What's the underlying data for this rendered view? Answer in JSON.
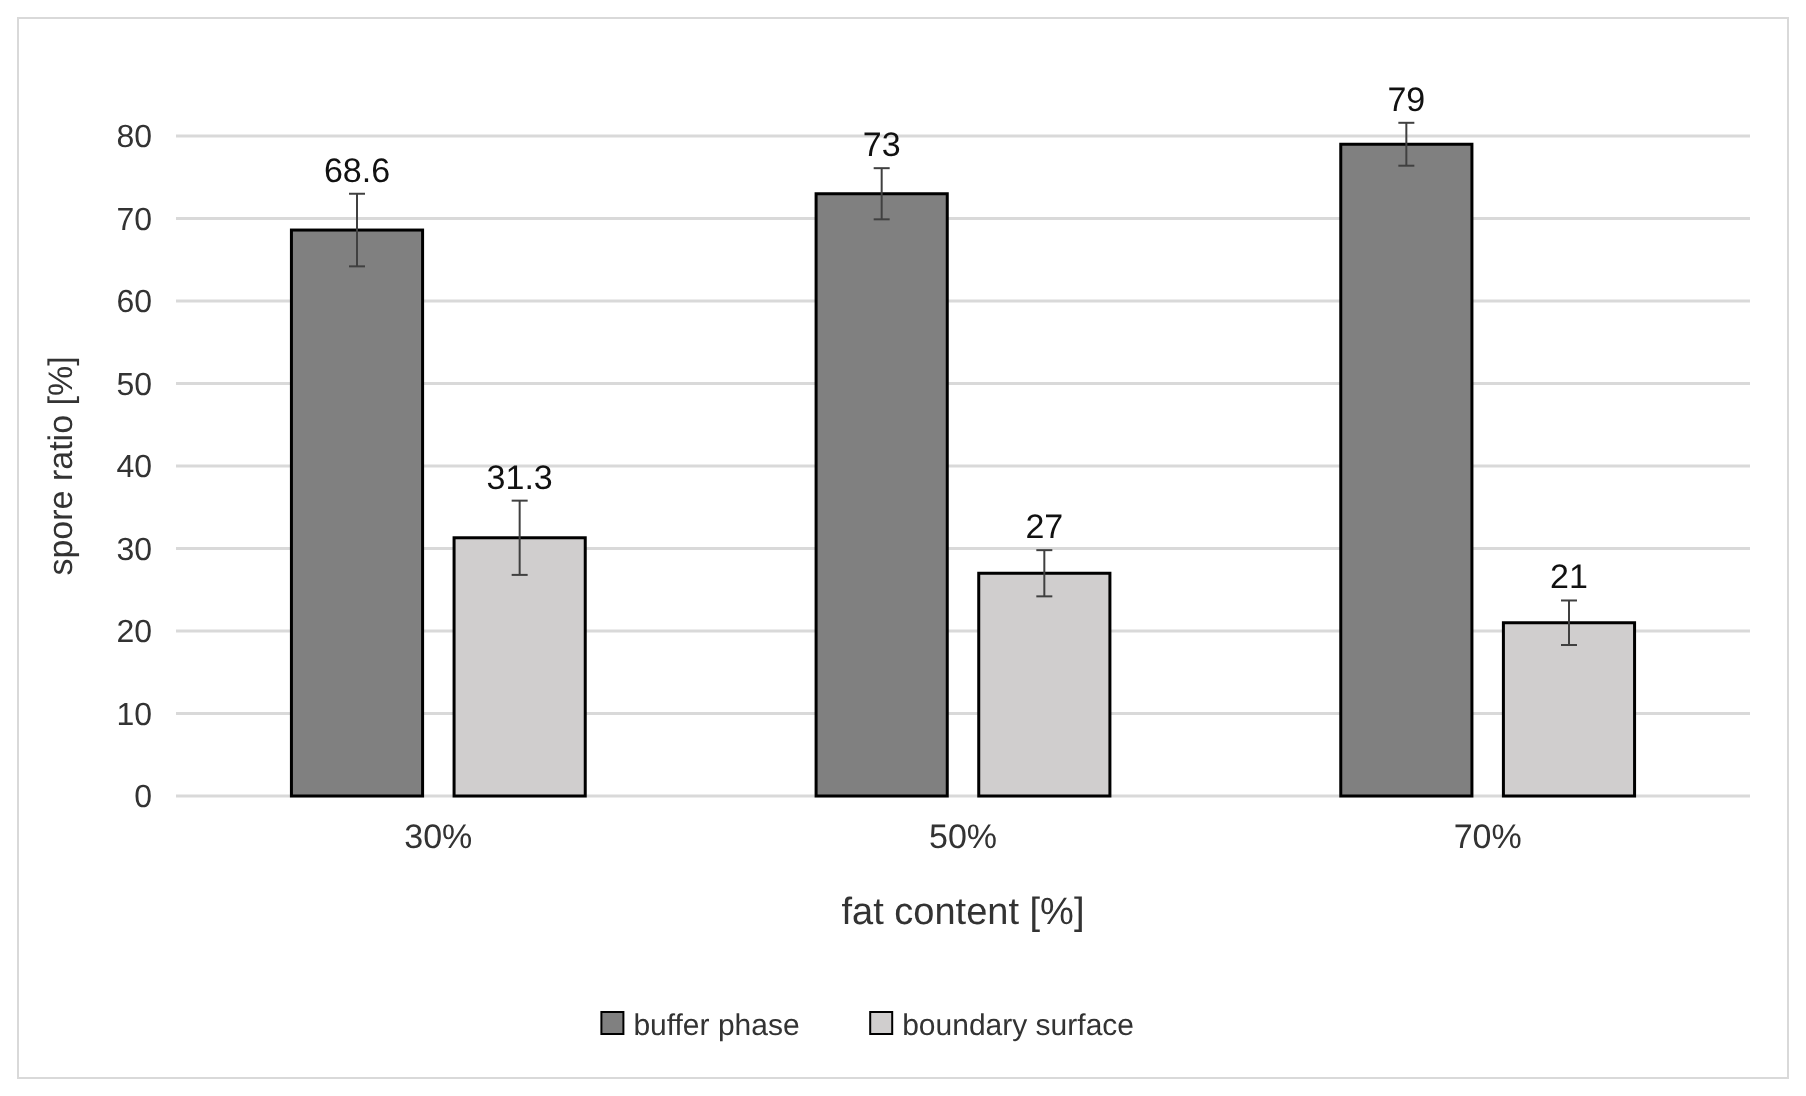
{
  "chart_data": {
    "type": "bar",
    "xlabel": "fat content [%]",
    "ylabel": "spore ratio [%]",
    "categories": [
      "30%",
      "50%",
      "70%"
    ],
    "series": [
      {
        "name": "buffer phase",
        "color": "#808080",
        "values": [
          68.6,
          73,
          79
        ],
        "errors": [
          4.4,
          3.1,
          2.6
        ]
      },
      {
        "name": "boundary surface",
        "color": "#d0cece",
        "values": [
          31.3,
          27,
          21
        ],
        "errors": [
          4.5,
          2.8,
          2.7
        ]
      }
    ],
    "ylim": [
      0,
      80
    ],
    "yticks": [
      0,
      10,
      20,
      30,
      40,
      50,
      60,
      70,
      80
    ],
    "grid": "y",
    "legend": "bottom",
    "data_labels": true
  }
}
